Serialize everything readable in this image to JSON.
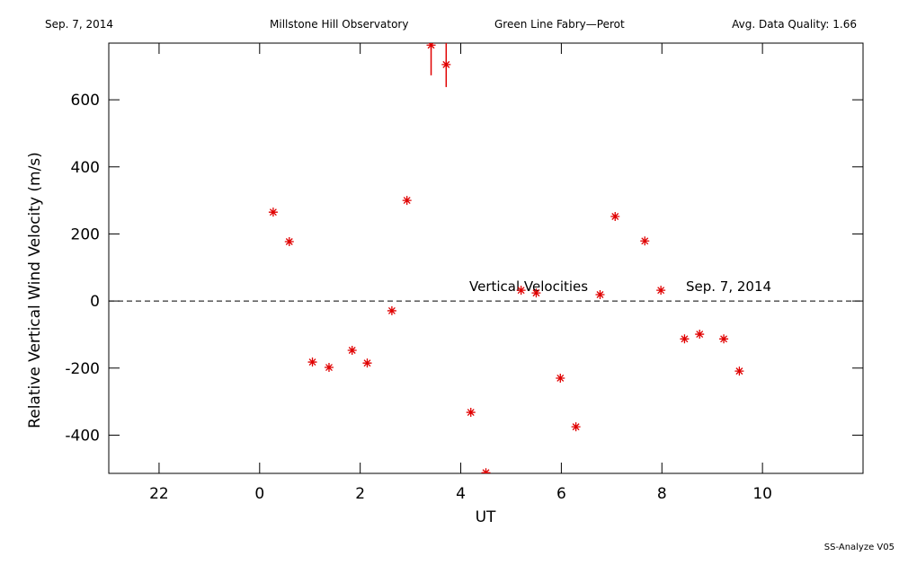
{
  "header": {
    "left": "Sep. 7, 2014",
    "center_left": "Millstone Hill Observatory",
    "center_right": "Green Line Fabry—Perot",
    "right": "Avg. Data Quality: 1.66"
  },
  "footer": "SS-Analyze V05",
  "chart_data": {
    "type": "scatter",
    "x_label": "UT",
    "y_label": "Relative Vertical Wind Velocity (m/s)",
    "annotations": [
      "Vertical Velocities",
      "Sep. 7, 2014"
    ],
    "xlim": [
      -3,
      12
    ],
    "ylim": [
      -514,
      769
    ],
    "xticks": [
      {
        "value": -2,
        "label": "22"
      },
      0,
      2,
      4,
      6,
      8,
      10
    ],
    "yticks": [
      -400,
      -200,
      0,
      200,
      400,
      600
    ],
    "hline": 0,
    "color": "#e00000",
    "x": [
      0.27,
      0.59,
      1.05,
      1.38,
      1.84,
      2.14,
      2.63,
      2.93,
      3.41,
      3.71,
      4.2,
      4.5,
      5.2,
      5.5,
      5.98,
      6.29,
      6.77,
      7.07,
      7.66,
      7.98,
      8.45,
      8.75,
      9.23,
      9.54
    ],
    "values": [
      265,
      177,
      -182,
      -198,
      -147,
      -185,
      -29,
      300,
      763,
      705,
      -332,
      -512,
      32,
      24,
      -230,
      -375,
      19,
      252,
      179,
      32,
      -113,
      -99,
      -113,
      -209
    ],
    "errors": [
      null,
      null,
      null,
      null,
      null,
      null,
      null,
      null,
      90,
      67,
      null,
      null,
      null,
      null,
      null,
      null,
      null,
      null,
      null,
      null,
      null,
      null,
      null,
      null
    ]
  }
}
